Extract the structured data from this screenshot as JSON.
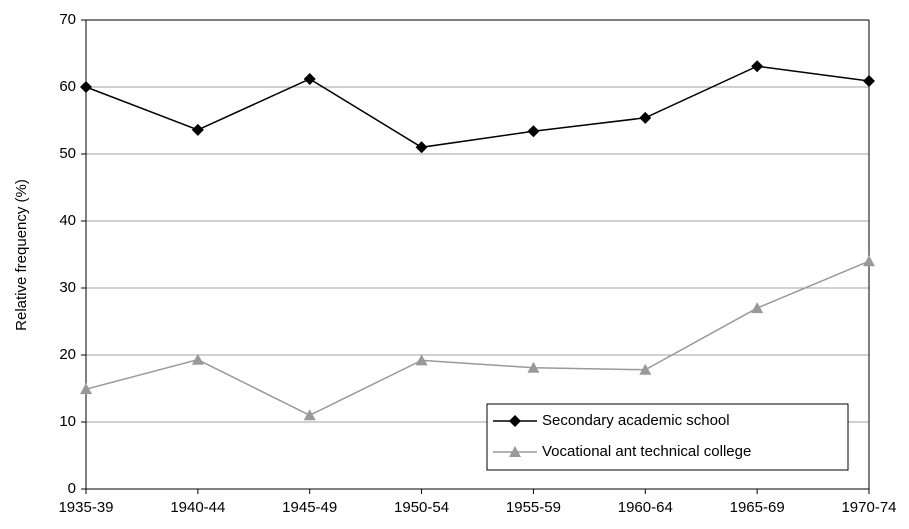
{
  "chart_data": {
    "type": "line",
    "y_label": "Relative frequency (%)",
    "categories": [
      "1935-39",
      "1940-44",
      "1945-49",
      "1950-54",
      "1955-59",
      "1960-64",
      "1965-69",
      "1970-74"
    ],
    "series": [
      {
        "name": "Secondary academic school",
        "color": "#000000",
        "marker": "diamond",
        "values": [
          60.0,
          53.6,
          61.2,
          51.0,
          53.4,
          55.4,
          63.1,
          60.9
        ]
      },
      {
        "name": "Vocational ant technical college",
        "color": "#999999",
        "marker": "triangle",
        "values": [
          14.9,
          19.3,
          11.0,
          19.2,
          18.1,
          17.8,
          27.0,
          34.0
        ]
      }
    ],
    "ylim": [
      0,
      70
    ],
    "yticks": [
      0,
      10,
      20,
      30,
      40,
      50,
      60,
      70
    ],
    "grid": true,
    "legend": "lower right"
  }
}
